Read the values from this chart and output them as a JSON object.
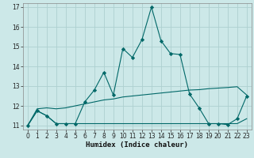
{
  "title": "",
  "xlabel": "Humidex (Indice chaleur)",
  "x": [
    0,
    1,
    2,
    3,
    4,
    5,
    6,
    7,
    8,
    9,
    10,
    11,
    12,
    13,
    14,
    15,
    16,
    17,
    18,
    19,
    20,
    21,
    22,
    23
  ],
  "y_main": [
    11.0,
    11.75,
    11.5,
    11.1,
    11.1,
    11.1,
    12.2,
    12.8,
    13.7,
    12.55,
    14.9,
    14.45,
    15.35,
    17.0,
    15.3,
    14.65,
    14.6,
    12.6,
    11.9,
    11.1,
    11.1,
    11.05,
    11.35,
    12.5
  ],
  "y_low": [
    11.0,
    11.75,
    11.5,
    11.1,
    11.1,
    11.1,
    11.1,
    11.1,
    11.1,
    11.1,
    11.1,
    11.1,
    11.1,
    11.1,
    11.1,
    11.1,
    11.1,
    11.1,
    11.1,
    11.1,
    11.1,
    11.1,
    11.1,
    11.35
  ],
  "y_trend": [
    11.0,
    11.85,
    11.9,
    11.85,
    11.9,
    12.0,
    12.1,
    12.2,
    12.3,
    12.35,
    12.45,
    12.5,
    12.55,
    12.6,
    12.65,
    12.7,
    12.75,
    12.8,
    12.82,
    12.87,
    12.9,
    12.93,
    12.97,
    12.55
  ],
  "bg_color": "#cce8e8",
  "grid_color": "#aed0d0",
  "line_color": "#006868",
  "marker_color": "#006868",
  "ylim_min": 10.8,
  "ylim_max": 17.2,
  "yticks": [
    11,
    12,
    13,
    14,
    15,
    16,
    17
  ],
  "xticks": [
    0,
    1,
    2,
    3,
    4,
    5,
    6,
    7,
    8,
    9,
    10,
    11,
    12,
    13,
    14,
    15,
    16,
    17,
    18,
    19,
    20,
    21,
    22,
    23
  ],
  "xlabel_fontsize": 6.5,
  "tick_fontsize": 5.5
}
